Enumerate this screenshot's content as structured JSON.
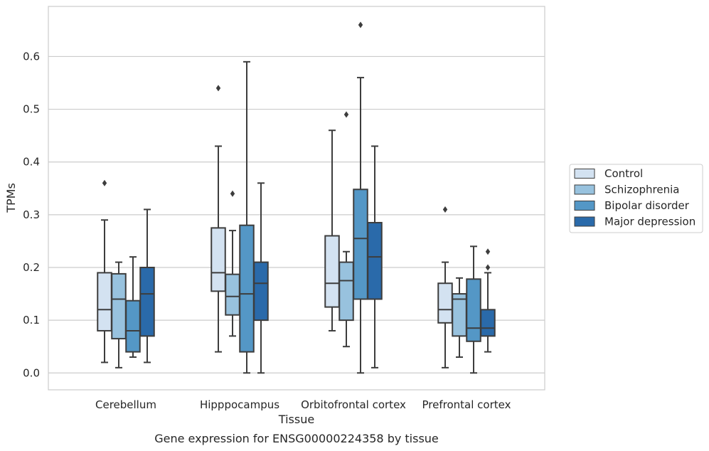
{
  "chart_data": {
    "type": "box",
    "title": "",
    "caption": "Gene expression for ENSG00000224358 by tissue",
    "xlabel": "Tissue",
    "ylabel": "TPMs",
    "ylim": [
      -0.032,
      0.695
    ],
    "yticks": [
      "0.0",
      "0.1",
      "0.2",
      "0.3",
      "0.4",
      "0.5",
      "0.6"
    ],
    "yticks_values": [
      0,
      0.1,
      0.2,
      0.3,
      0.4,
      0.5,
      0.6
    ],
    "grid": "horizontal",
    "legend_position": "right",
    "categories": [
      "Cerebellum",
      "Hipppocampus",
      "Orbitofrontal cortex",
      "Prefrontal cortex"
    ],
    "series": [
      {
        "name": "Control",
        "color": "#d3e2f1",
        "boxes": [
          {
            "whisker_low": 0.02,
            "q1": 0.08,
            "median": 0.12,
            "q3": 0.19,
            "whisker_high": 0.29,
            "outliers": [
              0.36
            ]
          },
          {
            "whisker_low": 0.04,
            "q1": 0.155,
            "median": 0.19,
            "q3": 0.275,
            "whisker_high": 0.43,
            "outliers": [
              0.54
            ]
          },
          {
            "whisker_low": 0.08,
            "q1": 0.125,
            "median": 0.17,
            "q3": 0.26,
            "whisker_high": 0.46,
            "outliers": []
          },
          {
            "whisker_low": 0.01,
            "q1": 0.095,
            "median": 0.12,
            "q3": 0.17,
            "whisker_high": 0.21,
            "outliers": [
              0.31
            ]
          }
        ]
      },
      {
        "name": "Schizophrenia",
        "color": "#98c2de",
        "boxes": [
          {
            "whisker_low": 0.01,
            "q1": 0.065,
            "median": 0.14,
            "q3": 0.188,
            "whisker_high": 0.21,
            "outliers": []
          },
          {
            "whisker_low": 0.07,
            "q1": 0.11,
            "median": 0.145,
            "q3": 0.187,
            "whisker_high": 0.27,
            "outliers": [
              0.34
            ]
          },
          {
            "whisker_low": 0.05,
            "q1": 0.1,
            "median": 0.175,
            "q3": 0.21,
            "whisker_high": 0.23,
            "outliers": [
              0.49
            ]
          },
          {
            "whisker_low": 0.03,
            "q1": 0.07,
            "median": 0.14,
            "q3": 0.15,
            "whisker_high": 0.18,
            "outliers": []
          }
        ]
      },
      {
        "name": "Bipolar disorder",
        "color": "#5497c6",
        "boxes": [
          {
            "whisker_low": 0.03,
            "q1": 0.04,
            "median": 0.08,
            "q3": 0.137,
            "whisker_high": 0.22,
            "outliers": []
          },
          {
            "whisker_low": 0.0,
            "q1": 0.04,
            "median": 0.15,
            "q3": 0.28,
            "whisker_high": 0.59,
            "outliers": []
          },
          {
            "whisker_low": 0.0,
            "q1": 0.14,
            "median": 0.255,
            "q3": 0.348,
            "whisker_high": 0.56,
            "outliers": [
              0.66
            ]
          },
          {
            "whisker_low": 0.0,
            "q1": 0.06,
            "median": 0.085,
            "q3": 0.178,
            "whisker_high": 0.24,
            "outliers": []
          }
        ]
      },
      {
        "name": "Major depression",
        "color": "#2a6aaa",
        "boxes": [
          {
            "whisker_low": 0.02,
            "q1": 0.07,
            "median": 0.15,
            "q3": 0.2,
            "whisker_high": 0.31,
            "outliers": []
          },
          {
            "whisker_low": 0.0,
            "q1": 0.1,
            "median": 0.17,
            "q3": 0.21,
            "whisker_high": 0.36,
            "outliers": []
          },
          {
            "whisker_low": 0.01,
            "q1": 0.14,
            "median": 0.22,
            "q3": 0.285,
            "whisker_high": 0.43,
            "outliers": []
          },
          {
            "whisker_low": 0.04,
            "q1": 0.07,
            "median": 0.085,
            "q3": 0.12,
            "whisker_high": 0.19,
            "outliers": [
              0.2,
              0.23
            ]
          }
        ]
      }
    ],
    "colors": {
      "grid": "#cccccc",
      "frame": "#cccccc",
      "box_edge": "#3d3d3d",
      "background": "#ffffff"
    }
  }
}
